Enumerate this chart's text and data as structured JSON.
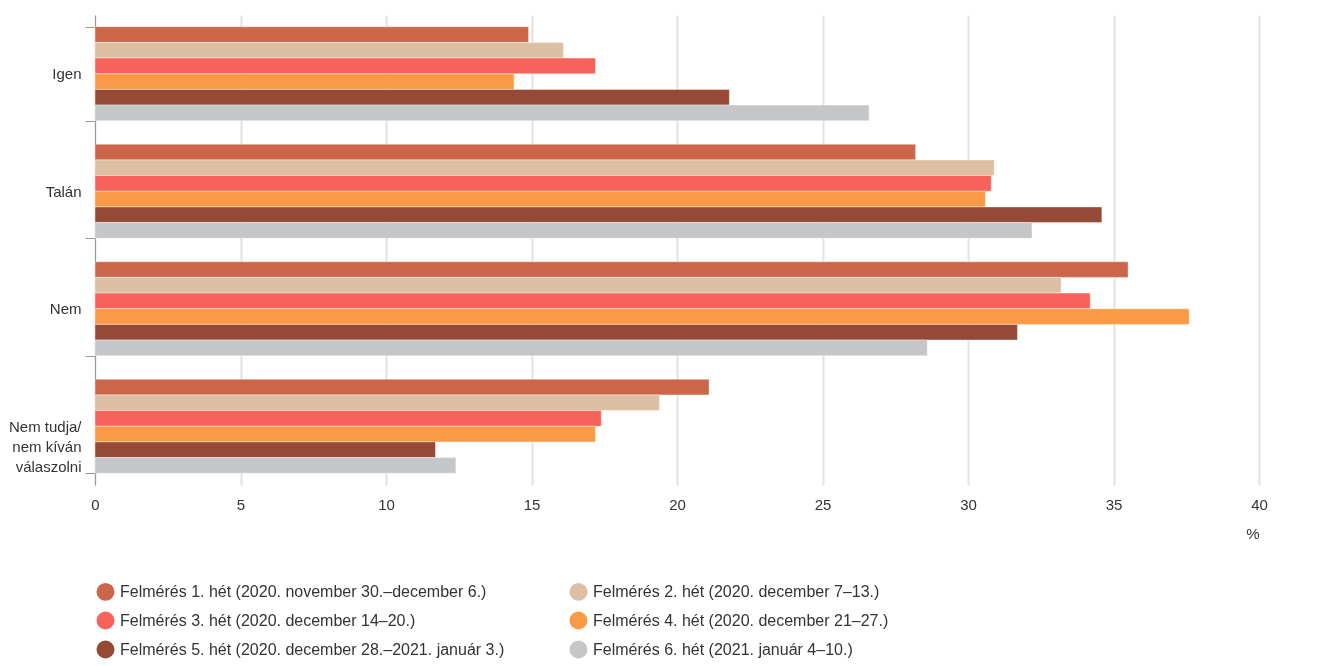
{
  "chart_data": {
    "type": "bar",
    "orientation": "horizontal",
    "xlabel": "%",
    "categories": [
      "Igen",
      "Talán",
      "Nem",
      "Nem tudja/ nem kíván válaszolni"
    ],
    "series": [
      {
        "name": "Felmérés 1. hét (2020. november 30.–december 6.)",
        "color": "#cb664a",
        "values": [
          14.9,
          28.2,
          35.5,
          21.1
        ]
      },
      {
        "name": "Felmérés 2. hét (2020. december 7–13.)",
        "color": "#ddbfa3",
        "values": [
          16.1,
          30.9,
          33.2,
          19.4
        ]
      },
      {
        "name": "Felmérés 3. hét (2020. december 14–20.)",
        "color": "#f7635a",
        "values": [
          17.2,
          30.8,
          34.2,
          17.4
        ]
      },
      {
        "name": "Felmérés 4. hét (2020. december 21–27.)",
        "color": "#fb9a45",
        "values": [
          14.4,
          30.6,
          37.6,
          17.2
        ]
      },
      {
        "name": "Felmérés 5. hét (2020. december 28.–2021. január 3.)",
        "color": "#964a35",
        "values": [
          21.8,
          34.6,
          31.7,
          11.7
        ]
      },
      {
        "name": "Felmérés 6. hét (2021. január 4–10.)",
        "color": "#c5c6c8",
        "values": [
          26.6,
          32.2,
          28.6,
          12.4
        ]
      }
    ],
    "xlim": [
      0,
      40
    ],
    "xticks": [
      0,
      5,
      10,
      15,
      20,
      25,
      30,
      35,
      40
    ],
    "grid": "x",
    "legend": "bottom"
  }
}
